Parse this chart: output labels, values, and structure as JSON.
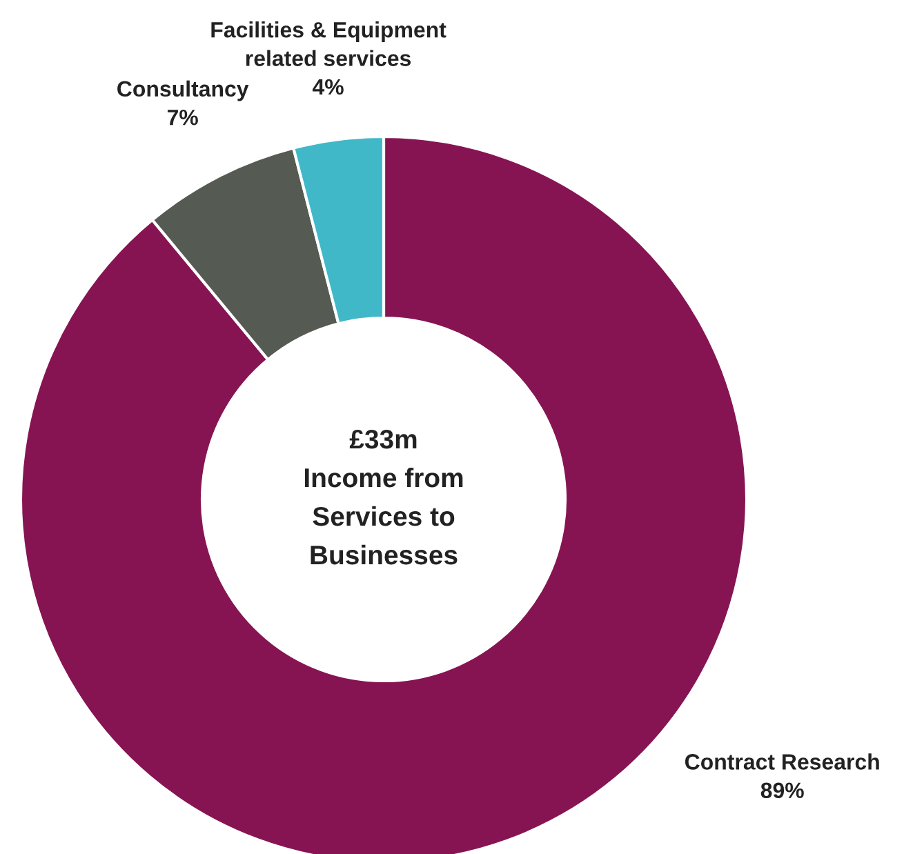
{
  "chart_data": {
    "type": "donut",
    "categories": [
      "Contract Research",
      "Consultancy",
      "Facilities & Equipment\nrelated services"
    ],
    "values": [
      89,
      7,
      4
    ],
    "colors": [
      "#861453",
      "#555a52",
      "#40b8c8"
    ],
    "value_labels": [
      "89%",
      "7%",
      "4%"
    ],
    "annotations": [
      "£33m\nIncome from\nServices to\nBusinesses"
    ]
  }
}
